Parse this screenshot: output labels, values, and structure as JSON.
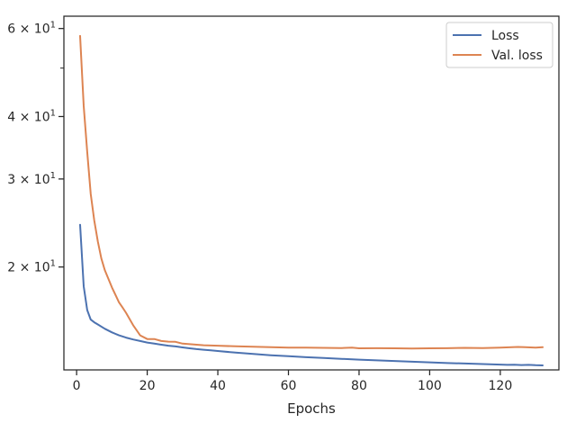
{
  "chart_data": {
    "type": "line",
    "title": "",
    "xlabel": "Epochs",
    "ylabel": "",
    "xlim": [
      -3.6,
      136.6
    ],
    "ylim": [
      12.45,
      63.5
    ],
    "yscale": "log",
    "grid": false,
    "legend_position": "top-right",
    "x_ticks": [
      0,
      20,
      40,
      60,
      80,
      100,
      120
    ],
    "y_ticks": [
      {
        "value": 20,
        "base": "2",
        "exp": "1"
      },
      {
        "value": 30,
        "base": "3",
        "exp": "1"
      },
      {
        "value": 40,
        "base": "4",
        "exp": "1"
      },
      {
        "value": 60,
        "base": "6",
        "exp": "1"
      }
    ],
    "y_minor_ticks": [
      50
    ],
    "series": [
      {
        "name": "Loss",
        "color": "#4c72b0",
        "x": [
          1,
          2,
          3,
          4,
          5,
          6,
          8,
          10,
          12,
          14,
          16,
          18,
          20,
          22,
          24,
          26,
          28,
          30,
          32,
          34,
          36,
          38,
          40,
          45,
          50,
          55,
          60,
          65,
          70,
          75,
          80,
          85,
          90,
          95,
          100,
          105,
          110,
          115,
          120,
          122,
          124,
          126,
          128,
          130,
          132
        ],
        "y": [
          24.3,
          18.3,
          16.4,
          15.7,
          15.5,
          15.35,
          15.05,
          14.8,
          14.6,
          14.45,
          14.32,
          14.22,
          14.12,
          14.05,
          13.98,
          13.92,
          13.87,
          13.81,
          13.75,
          13.7,
          13.66,
          13.62,
          13.58,
          13.48,
          13.4,
          13.32,
          13.26,
          13.2,
          13.15,
          13.1,
          13.05,
          13.01,
          12.97,
          12.93,
          12.89,
          12.85,
          12.82,
          12.79,
          12.76,
          12.74,
          12.75,
          12.73,
          12.74,
          12.72,
          12.71
        ]
      },
      {
        "name": "Val. loss",
        "color": "#dd8452",
        "x": [
          1,
          2,
          3,
          4,
          5,
          6,
          7,
          8,
          10,
          12,
          13,
          14,
          16,
          18,
          20,
          22,
          24,
          26,
          28,
          30,
          32,
          34,
          36,
          38,
          40,
          45,
          50,
          55,
          60,
          65,
          70,
          75,
          78,
          80,
          85,
          90,
          95,
          100,
          105,
          110,
          115,
          120,
          125,
          127,
          130,
          132
        ],
        "y": [
          58.0,
          42.0,
          34.0,
          28.0,
          24.8,
          22.5,
          20.8,
          19.7,
          18.2,
          17.0,
          16.6,
          16.2,
          15.3,
          14.6,
          14.35,
          14.35,
          14.22,
          14.18,
          14.17,
          14.05,
          14.02,
          13.98,
          13.95,
          13.93,
          13.92,
          13.88,
          13.85,
          13.82,
          13.8,
          13.8,
          13.78,
          13.77,
          13.8,
          13.75,
          13.76,
          13.75,
          13.74,
          13.75,
          13.76,
          13.78,
          13.77,
          13.79,
          13.84,
          13.82,
          13.8,
          13.82
        ]
      }
    ]
  }
}
